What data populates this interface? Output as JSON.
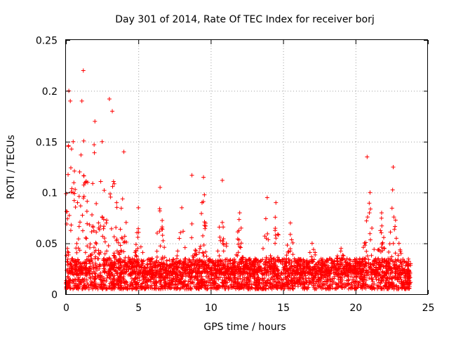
{
  "chart_data": {
    "type": "scatter",
    "title": "Day 301 of 2014, Rate Of TEC Index for receiver borj",
    "xlabel": "GPS time / hours",
    "ylabel": "ROTI / TECUs",
    "xlim": [
      0,
      25
    ],
    "ylim": [
      0,
      0.25
    ],
    "grid": true,
    "marker": "+",
    "color": "#ff0000",
    "x_ticks": [
      0,
      5,
      10,
      15,
      20,
      25
    ],
    "x_tick_labels": [
      "0",
      "5",
      "10",
      "15",
      "20",
      "25"
    ],
    "y_ticks": [
      0,
      0.05,
      0.1,
      0.15,
      0.2,
      0.25
    ],
    "y_tick_labels": [
      "0",
      "0.05",
      "0.1",
      "0.15",
      "0.2",
      "0.25"
    ],
    "envelope_points": [
      {
        "x": 0.1,
        "y": 0.045
      },
      {
        "x": 0.2,
        "y": 0.2
      },
      {
        "x": 0.3,
        "y": 0.19
      },
      {
        "x": 0.5,
        "y": 0.15
      },
      {
        "x": 0.8,
        "y": 0.09
      },
      {
        "x": 1.2,
        "y": 0.22
      },
      {
        "x": 1.1,
        "y": 0.19
      },
      {
        "x": 1.5,
        "y": 0.11
      },
      {
        "x": 2.0,
        "y": 0.17
      },
      {
        "x": 2.5,
        "y": 0.15
      },
      {
        "x": 3.0,
        "y": 0.192
      },
      {
        "x": 3.2,
        "y": 0.18
      },
      {
        "x": 3.5,
        "y": 0.09
      },
      {
        "x": 4.0,
        "y": 0.14
      },
      {
        "x": 5.0,
        "y": 0.085
      },
      {
        "x": 6.5,
        "y": 0.105
      },
      {
        "x": 8.0,
        "y": 0.085
      },
      {
        "x": 8.7,
        "y": 0.117
      },
      {
        "x": 9.5,
        "y": 0.115
      },
      {
        "x": 10.8,
        "y": 0.112
      },
      {
        "x": 12.0,
        "y": 0.08
      },
      {
        "x": 13.9,
        "y": 0.095
      },
      {
        "x": 14.5,
        "y": 0.09
      },
      {
        "x": 15.5,
        "y": 0.07
      },
      {
        "x": 17.0,
        "y": 0.05
      },
      {
        "x": 19.0,
        "y": 0.045
      },
      {
        "x": 20.8,
        "y": 0.135
      },
      {
        "x": 21.0,
        "y": 0.1
      },
      {
        "x": 21.8,
        "y": 0.08
      },
      {
        "x": 22.6,
        "y": 0.125
      },
      {
        "x": 23.0,
        "y": 0.05
      },
      {
        "x": 23.8,
        "y": 0.03
      }
    ],
    "background_band": {
      "x_range": [
        0,
        23.8
      ],
      "y_min": 0.005,
      "y_typical": 0.02,
      "y_max": 0.035
    }
  }
}
